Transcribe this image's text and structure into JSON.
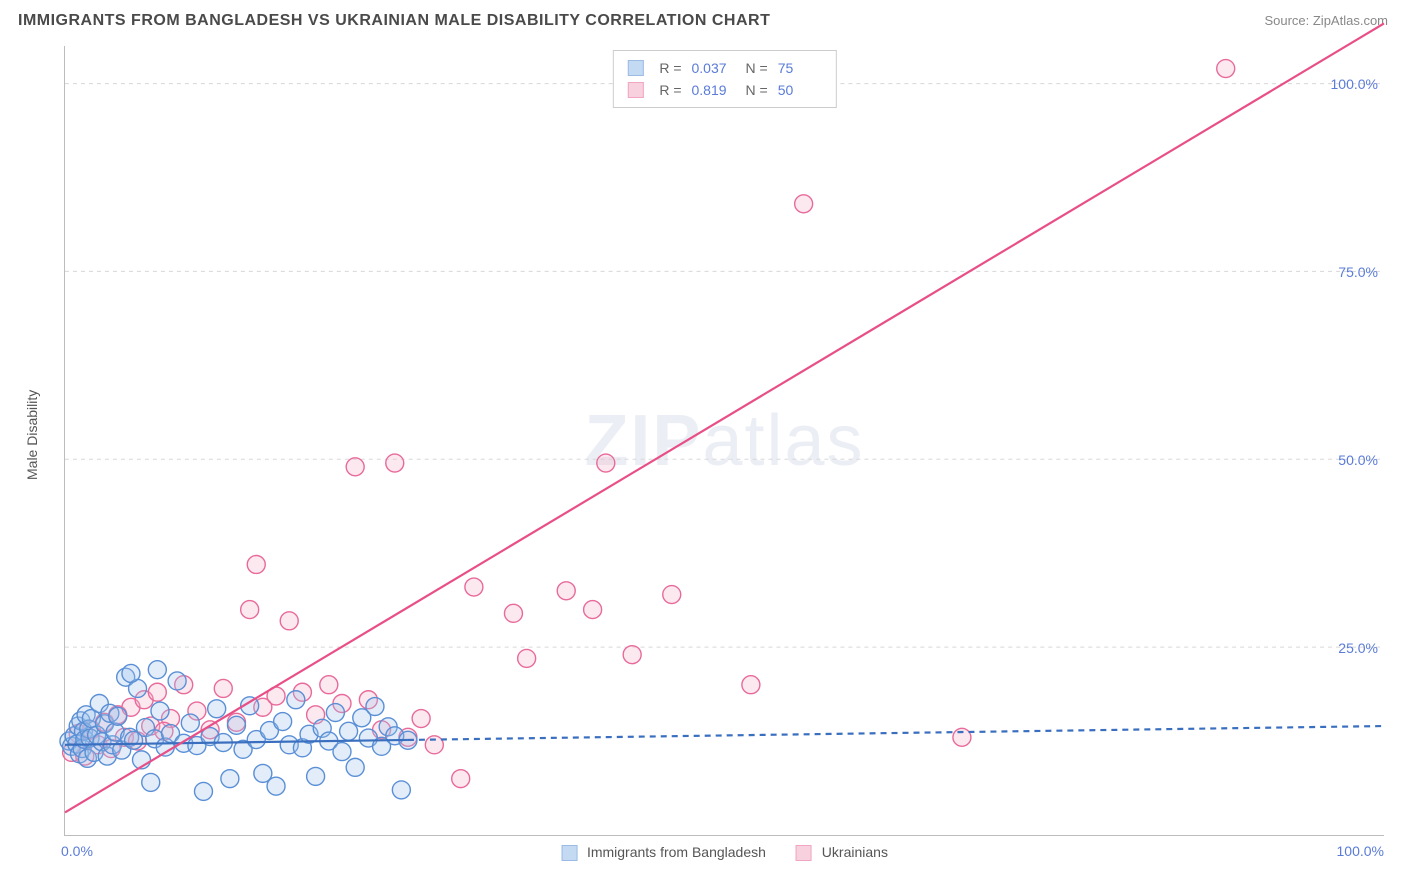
{
  "header": {
    "title": "IMMIGRANTS FROM BANGLADESH VS UKRAINIAN MALE DISABILITY CORRELATION CHART",
    "source": "Source: ZipAtlas.com"
  },
  "watermark": {
    "zip": "ZIP",
    "atlas": "atlas"
  },
  "chart": {
    "type": "scatter",
    "background_color": "#ffffff",
    "plot_border_color": "#bcbcbc",
    "grid_color": "#d8d8d8",
    "xlim": [
      0,
      100
    ],
    "ylim": [
      0,
      105
    ],
    "y_ticks": [
      25,
      50,
      75,
      100
    ],
    "y_tick_labels": [
      "25.0%",
      "50.0%",
      "75.0%",
      "100.0%"
    ],
    "x_tick_left": "0.0%",
    "x_tick_right": "100.0%",
    "ylabel": "Male Disability",
    "ylabel_fontsize": 14,
    "tick_label_color": "#5a7bd8",
    "tick_label_fontsize": 14,
    "marker_radius": 9,
    "marker_fill_opacity": 0.3,
    "marker_stroke_width": 1.4,
    "series": [
      {
        "name": "Immigrants from Bangladesh",
        "color_stroke": "#5a8fd6",
        "color_fill": "#9ec2ea",
        "R": "0.037",
        "N": "75",
        "trend": {
          "y_at_x0": 12.0,
          "y_at_x100": 14.5,
          "solid_until_x": 26,
          "line_color": "#3a6fc0",
          "line_width": 2.2,
          "dash": "6,5"
        },
        "points": [
          [
            0.3,
            12.5
          ],
          [
            0.5,
            11.8
          ],
          [
            0.7,
            13.2
          ],
          [
            0.9,
            12.1
          ],
          [
            1.0,
            14.5
          ],
          [
            1.1,
            10.8
          ],
          [
            1.2,
            15.2
          ],
          [
            1.3,
            11.5
          ],
          [
            1.4,
            13.8
          ],
          [
            1.5,
            12.7
          ],
          [
            1.6,
            16.0
          ],
          [
            1.7,
            10.2
          ],
          [
            1.8,
            14.1
          ],
          [
            1.9,
            12.9
          ],
          [
            2.0,
            15.5
          ],
          [
            2.2,
            11.0
          ],
          [
            2.4,
            13.3
          ],
          [
            2.6,
            17.5
          ],
          [
            2.8,
            12.4
          ],
          [
            3.0,
            14.8
          ],
          [
            3.2,
            10.5
          ],
          [
            3.4,
            16.2
          ],
          [
            3.6,
            12.0
          ],
          [
            3.8,
            13.7
          ],
          [
            4.0,
            15.8
          ],
          [
            4.3,
            11.3
          ],
          [
            4.6,
            21.0
          ],
          [
            4.9,
            13.0
          ],
          [
            5.2,
            12.6
          ],
          [
            5.5,
            19.5
          ],
          [
            5.8,
            10.0
          ],
          [
            6.1,
            14.3
          ],
          [
            6.5,
            7.0
          ],
          [
            6.8,
            12.8
          ],
          [
            7.2,
            16.5
          ],
          [
            7.6,
            11.7
          ],
          [
            8.0,
            13.5
          ],
          [
            8.5,
            20.5
          ],
          [
            9.0,
            12.2
          ],
          [
            9.5,
            14.9
          ],
          [
            10.0,
            11.9
          ],
          [
            10.5,
            5.8
          ],
          [
            11.0,
            13.1
          ],
          [
            11.5,
            16.8
          ],
          [
            12.0,
            12.3
          ],
          [
            12.5,
            7.5
          ],
          [
            13.0,
            14.6
          ],
          [
            13.5,
            11.4
          ],
          [
            14.0,
            17.2
          ],
          [
            14.5,
            12.7
          ],
          [
            15.0,
            8.2
          ],
          [
            15.5,
            13.9
          ],
          [
            16.0,
            6.5
          ],
          [
            16.5,
            15.1
          ],
          [
            17.0,
            12.0
          ],
          [
            17.5,
            18.0
          ],
          [
            18.0,
            11.6
          ],
          [
            18.5,
            13.4
          ],
          [
            19.0,
            7.8
          ],
          [
            19.5,
            14.2
          ],
          [
            20.0,
            12.5
          ],
          [
            20.5,
            16.3
          ],
          [
            21.0,
            11.1
          ],
          [
            21.5,
            13.8
          ],
          [
            22.0,
            9.0
          ],
          [
            22.5,
            15.6
          ],
          [
            23.0,
            12.9
          ],
          [
            23.5,
            17.1
          ],
          [
            24.0,
            11.8
          ],
          [
            24.5,
            14.4
          ],
          [
            25.0,
            13.2
          ],
          [
            25.5,
            6.0
          ],
          [
            26.0,
            12.6
          ],
          [
            5.0,
            21.5
          ],
          [
            7.0,
            22.0
          ]
        ]
      },
      {
        "name": "Ukrainians",
        "color_stroke": "#e86a9a",
        "color_fill": "#f5b3c9",
        "R": "0.819",
        "N": "50",
        "trend": {
          "y_at_x0": 3.0,
          "y_at_x100": 108.0,
          "solid_until_x": 100,
          "line_color": "#e94f87",
          "line_width": 2.2,
          "dash": null
        },
        "points": [
          [
            0.5,
            11.0
          ],
          [
            1.0,
            13.5
          ],
          [
            1.5,
            10.5
          ],
          [
            2.0,
            14.0
          ],
          [
            2.5,
            12.0
          ],
          [
            3.0,
            15.0
          ],
          [
            3.5,
            11.5
          ],
          [
            4.0,
            16.0
          ],
          [
            4.5,
            13.0
          ],
          [
            5.0,
            17.0
          ],
          [
            5.5,
            12.5
          ],
          [
            6.0,
            18.0
          ],
          [
            6.5,
            14.5
          ],
          [
            7.0,
            19.0
          ],
          [
            8.0,
            15.5
          ],
          [
            9.0,
            20.0
          ],
          [
            10.0,
            16.5
          ],
          [
            11.0,
            14.0
          ],
          [
            12.0,
            19.5
          ],
          [
            13.0,
            15.0
          ],
          [
            14.0,
            30.0
          ],
          [
            14.5,
            36.0
          ],
          [
            15.0,
            17.0
          ],
          [
            16.0,
            18.5
          ],
          [
            17.0,
            28.5
          ],
          [
            18.0,
            19.0
          ],
          [
            19.0,
            16.0
          ],
          [
            20.0,
            20.0
          ],
          [
            21.0,
            17.5
          ],
          [
            22.0,
            49.0
          ],
          [
            23.0,
            18.0
          ],
          [
            24.0,
            14.0
          ],
          [
            25.0,
            49.5
          ],
          [
            26.0,
            13.0
          ],
          [
            27.0,
            15.5
          ],
          [
            28.0,
            12.0
          ],
          [
            30.0,
            7.5
          ],
          [
            31.0,
            33.0
          ],
          [
            34.0,
            29.5
          ],
          [
            35.0,
            23.5
          ],
          [
            38.0,
            32.5
          ],
          [
            40.0,
            30.0
          ],
          [
            41.0,
            49.5
          ],
          [
            43.0,
            24.0
          ],
          [
            46.0,
            32.0
          ],
          [
            52.0,
            20.0
          ],
          [
            56.0,
            84.0
          ],
          [
            68.0,
            13.0
          ],
          [
            88.0,
            102.0
          ],
          [
            7.5,
            13.8
          ]
        ]
      }
    ],
    "x_legend": {
      "s1_label": "Immigrants from Bangladesh",
      "s2_label": "Ukrainians"
    },
    "legend_box": {
      "border_color": "#cccccc",
      "bg_color": "#ffffff",
      "r_label": "R =",
      "n_label": "N ="
    }
  }
}
